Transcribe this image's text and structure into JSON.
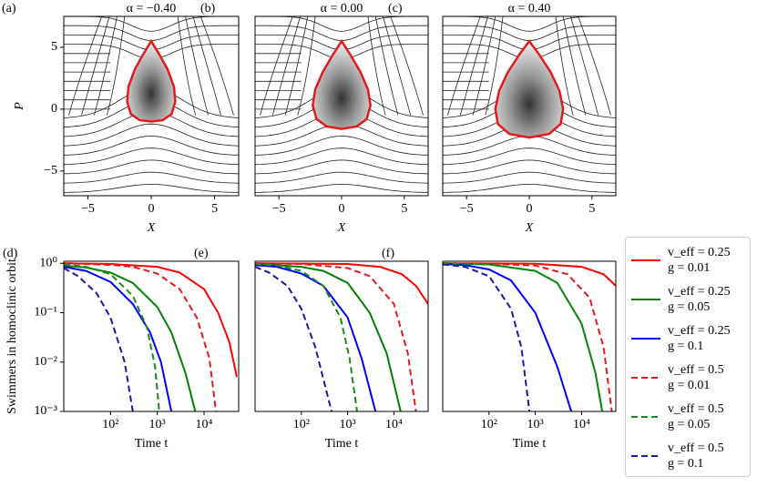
{
  "chart_data": [
    {
      "type": "streamplot",
      "panel": "(a)",
      "title": "α = −0.40",
      "xlabel": "X",
      "ylabel": "P",
      "xlim": [
        -6.9,
        6.9
      ],
      "ylim": [
        -7,
        7.5
      ],
      "xticks": [
        {
          "value": -5,
          "label": "−5"
        },
        0,
        5
      ],
      "yticks": [
        {
          "value": -5,
          "label": "−5"
        },
        0,
        5
      ],
      "separatrix_color": "#e31a1c",
      "separatrix": {
        "x": [
          0,
          0.6,
          1.3,
          1.8,
          1.9,
          1.6,
          0.9,
          0,
          -0.9,
          -1.6,
          -1.9,
          -1.8,
          -1.3,
          -0.6,
          0
        ],
        "y": [
          5.5,
          4.5,
          3.2,
          1.8,
          0.6,
          -0.4,
          -0.9,
          -1.0,
          -0.9,
          -0.4,
          0.6,
          1.8,
          3.2,
          4.5,
          5.5
        ]
      }
    },
    {
      "type": "streamplot",
      "panel": "(b)",
      "title": "α = 0.00",
      "xlabel": "X",
      "xlim": [
        -6.9,
        6.9
      ],
      "ylim": [
        -7,
        7.5
      ],
      "xticks": [
        {
          "value": -5,
          "label": "−5"
        },
        0,
        5
      ],
      "separatrix_color": "#e31a1c",
      "separatrix": {
        "x": [
          0,
          0.7,
          1.5,
          2.1,
          2.3,
          2.0,
          1.2,
          0,
          -1.2,
          -2.0,
          -2.3,
          -2.1,
          -1.5,
          -0.7,
          0
        ],
        "y": [
          5.5,
          4.4,
          3.0,
          1.6,
          0.3,
          -0.8,
          -1.4,
          -1.6,
          -1.4,
          -0.8,
          0.3,
          1.6,
          3.0,
          4.4,
          5.5
        ]
      }
    },
    {
      "type": "streamplot",
      "panel": "(c)",
      "title": "α = 0.40",
      "xlabel": "X",
      "xlim": [
        -6.9,
        6.9
      ],
      "ylim": [
        -7,
        7.5
      ],
      "xticks": [
        {
          "value": -5,
          "label": "−5"
        },
        0,
        5
      ],
      "separatrix_color": "#e31a1c",
      "separatrix": {
        "x": [
          0,
          0.8,
          1.7,
          2.4,
          2.7,
          2.5,
          1.6,
          0,
          -1.6,
          -2.5,
          -2.7,
          -2.4,
          -1.7,
          -0.8,
          0
        ],
        "y": [
          5.5,
          4.4,
          3.0,
          1.5,
          0.0,
          -1.2,
          -2.0,
          -2.3,
          -2.0,
          -1.2,
          0.0,
          1.5,
          3.0,
          4.4,
          5.5
        ]
      }
    },
    {
      "type": "line",
      "panel": "(d)",
      "xlabel": "Time t",
      "ylabel": "Swimmers in homoclinic orbit",
      "xscale": "log",
      "yscale": "log",
      "xlim": [
        10,
        55000
      ],
      "ylim": [
        0.001,
        1.1
      ],
      "xticks": [
        {
          "value": 100,
          "label": "10²"
        },
        {
          "value": 1000,
          "label": "10³"
        },
        {
          "value": 10000,
          "label": "10⁴"
        }
      ],
      "yticks": [
        {
          "value": 0.001,
          "label": "10⁻³"
        },
        {
          "value": 0.01,
          "label": "10⁻²"
        },
        {
          "value": 0.1,
          "label": "10⁻¹"
        },
        {
          "value": 1,
          "label": "10⁰"
        }
      ],
      "legend": true,
      "series": [
        {
          "name": "v_eff = 0.25\ng = 0.01",
          "color": "#ff0000",
          "dashed": false,
          "x": [
            10,
            100,
            1000,
            3000,
            10000,
            20000,
            35000,
            50000
          ],
          "values": [
            1,
            0.97,
            0.85,
            0.65,
            0.3,
            0.1,
            0.025,
            0.005
          ]
        },
        {
          "name": "v_eff = 0.25\ng = 0.05",
          "color": "#008000",
          "dashed": false,
          "x": [
            10,
            30,
            100,
            300,
            1000,
            2000,
            4000,
            6500
          ],
          "values": [
            0.9,
            0.82,
            0.65,
            0.4,
            0.13,
            0.04,
            0.006,
            0.001
          ]
        },
        {
          "name": "v_eff = 0.25\ng = 0.1",
          "color": "#0000ff",
          "dashed": false,
          "x": [
            10,
            30,
            100,
            300,
            700,
            1200,
            2000
          ],
          "values": [
            0.85,
            0.7,
            0.42,
            0.15,
            0.04,
            0.01,
            0.001
          ]
        },
        {
          "name": "v_eff = 0.5\ng = 0.01",
          "color": "#e31a1c",
          "dashed": true,
          "x": [
            10,
            100,
            300,
            1000,
            3000,
            7000,
            13000,
            18000
          ],
          "values": [
            1,
            0.93,
            0.85,
            0.62,
            0.3,
            0.08,
            0.012,
            0.001
          ]
        },
        {
          "name": "v_eff = 0.5\ng = 0.05",
          "color": "#1a8a1a",
          "dashed": true,
          "x": [
            10,
            30,
            100,
            300,
            600,
            900,
            1100
          ],
          "values": [
            0.95,
            0.85,
            0.6,
            0.22,
            0.05,
            0.008,
            0.001
          ]
        },
        {
          "name": "v_eff = 0.5\ng = 0.1",
          "color": "#1a1aa0",
          "dashed": true,
          "x": [
            10,
            20,
            50,
            100,
            200,
            300
          ],
          "values": [
            0.8,
            0.55,
            0.25,
            0.08,
            0.01,
            0.001
          ]
        }
      ]
    },
    {
      "type": "line",
      "panel": "(e)",
      "xlabel": "Time t",
      "xscale": "log",
      "yscale": "log",
      "xlim": [
        10,
        55000
      ],
      "ylim": [
        0.001,
        1.1
      ],
      "xticks": [
        {
          "value": 100,
          "label": "10²"
        },
        {
          "value": 1000,
          "label": "10³"
        },
        {
          "value": 10000,
          "label": "10⁴"
        }
      ],
      "series": [
        {
          "color": "#ff0000",
          "dashed": false,
          "x": [
            10,
            1000,
            5000,
            15000,
            30000,
            55000
          ],
          "values": [
            1,
            0.97,
            0.85,
            0.6,
            0.35,
            0.15
          ]
        },
        {
          "color": "#008000",
          "dashed": false,
          "x": [
            10,
            100,
            300,
            1000,
            3000,
            7000,
            14000
          ],
          "values": [
            0.97,
            0.85,
            0.7,
            0.4,
            0.1,
            0.015,
            0.001
          ]
        },
        {
          "color": "#0000ff",
          "dashed": false,
          "x": [
            10,
            30,
            100,
            300,
            1000,
            2000,
            4000
          ],
          "values": [
            0.92,
            0.85,
            0.62,
            0.35,
            0.08,
            0.012,
            0.001
          ]
        },
        {
          "color": "#e31a1c",
          "dashed": true,
          "x": [
            10,
            100,
            1000,
            3000,
            10000,
            20000,
            30000
          ],
          "values": [
            1,
            0.97,
            0.8,
            0.55,
            0.15,
            0.015,
            0.001
          ]
        },
        {
          "color": "#1a8a1a",
          "dashed": true,
          "x": [
            10,
            30,
            100,
            300,
            700,
            1100,
            1600
          ],
          "values": [
            0.97,
            0.9,
            0.7,
            0.35,
            0.08,
            0.012,
            0.001
          ]
        },
        {
          "color": "#1a1aa0",
          "dashed": true,
          "x": [
            10,
            20,
            50,
            100,
            200,
            450
          ],
          "values": [
            0.85,
            0.65,
            0.35,
            0.12,
            0.02,
            0.001
          ]
        }
      ]
    },
    {
      "type": "line",
      "panel": "(f)",
      "xlabel": "Time t",
      "xscale": "log",
      "yscale": "log",
      "xlim": [
        10,
        55000
      ],
      "ylim": [
        0.001,
        1.1
      ],
      "xticks": [
        {
          "value": 100,
          "label": "10²"
        },
        {
          "value": 1000,
          "label": "10³"
        },
        {
          "value": 10000,
          "label": "10⁴"
        }
      ],
      "series": [
        {
          "color": "#ff0000",
          "dashed": false,
          "x": [
            10,
            1000,
            10000,
            30000,
            55000
          ],
          "values": [
            1,
            0.98,
            0.85,
            0.6,
            0.35
          ]
        },
        {
          "color": "#008000",
          "dashed": false,
          "x": [
            10,
            100,
            1000,
            3000,
            10000,
            20000,
            28000
          ],
          "values": [
            1,
            0.95,
            0.7,
            0.4,
            0.06,
            0.006,
            0.001
          ]
        },
        {
          "color": "#0000ff",
          "dashed": false,
          "x": [
            10,
            30,
            100,
            300,
            1000,
            3000,
            6000
          ],
          "values": [
            0.97,
            0.92,
            0.75,
            0.45,
            0.1,
            0.008,
            0.001
          ]
        },
        {
          "color": "#e31a1c",
          "dashed": true,
          "x": [
            10,
            100,
            1000,
            5000,
            15000,
            30000,
            45000
          ],
          "values": [
            1,
            0.98,
            0.9,
            0.6,
            0.2,
            0.02,
            0.001
          ]
        },
        {
          "color": "#1a8a1a",
          "dashed": true,
          "x": [
            10,
            100,
            1000,
            3000,
            10000,
            20000,
            28000
          ],
          "values": [
            1,
            0.95,
            0.7,
            0.4,
            0.06,
            0.006,
            0.001
          ]
        },
        {
          "color": "#1a1aa0",
          "dashed": true,
          "x": [
            10,
            30,
            100,
            300,
            500,
            750
          ],
          "values": [
            0.95,
            0.85,
            0.55,
            0.12,
            0.02,
            0.001
          ]
        }
      ]
    }
  ]
}
